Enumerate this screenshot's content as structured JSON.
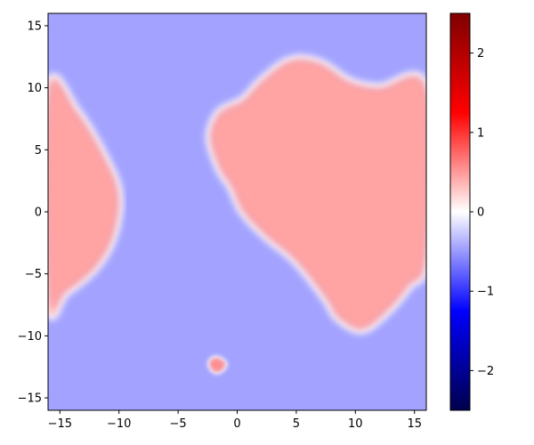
{
  "chart_data": {
    "type": "heatmap",
    "title": "",
    "xlabel": "",
    "ylabel": "",
    "xlim": [
      -16,
      16
    ],
    "ylim": [
      -16,
      16
    ],
    "x_ticks": [
      -15,
      -10,
      -5,
      0,
      5,
      10,
      15
    ],
    "x_tick_labels": [
      "−15",
      "−10",
      "−5",
      "0",
      "5",
      "10",
      "15"
    ],
    "y_ticks": [
      -15,
      -10,
      -5,
      0,
      5,
      10,
      15
    ],
    "y_tick_labels": [
      "−15",
      "−10",
      "−5",
      "0",
      "5",
      "10",
      "15"
    ],
    "grid": false,
    "colormap": "seismic",
    "background_value": -0.45,
    "regions": [
      {
        "name": "",
        "value": 0.45,
        "boundary": [
          [
            -16,
            9.9
          ],
          [
            -13.5,
            8.0
          ],
          [
            -11,
            4.0
          ],
          [
            -10,
            1.2
          ],
          [
            -10.5,
            -2.0
          ],
          [
            -12,
            -4.5
          ],
          [
            -14.5,
            -6.5
          ],
          [
            -16,
            -7.3
          ]
        ]
      },
      {
        "name": "",
        "value": 0.45,
        "boundary": [
          [
            -2.3,
            6.0
          ],
          [
            -1.5,
            8.0
          ],
          [
            0.5,
            9.0
          ],
          [
            2.0,
            10.5
          ],
          [
            4.5,
            12.2
          ],
          [
            7.0,
            12.0
          ],
          [
            9.5,
            10.5
          ],
          [
            12.0,
            10.0
          ],
          [
            16,
            10.0
          ],
          [
            16,
            -3.5
          ],
          [
            14.5,
            -6.0
          ],
          [
            12.5,
            -8.2
          ],
          [
            10.5,
            -9.5
          ],
          [
            8.5,
            -8.5
          ],
          [
            7.5,
            -7.0
          ],
          [
            5.0,
            -4.0
          ],
          [
            2.5,
            -2.0
          ],
          [
            0.5,
            0.0
          ],
          [
            -0.5,
            2.0
          ],
          [
            -1.5,
            3.5
          ]
        ]
      },
      {
        "name": "",
        "value": 0.55,
        "boundary": [
          [
            -1.4,
            -11.9
          ],
          [
            -1.0,
            -12.3
          ],
          [
            -1.4,
            -12.8
          ],
          [
            -1.8,
            -12.9
          ],
          [
            -2.2,
            -12.6
          ],
          [
            -2.3,
            -12.1
          ],
          [
            -1.9,
            -11.8
          ]
        ]
      }
    ],
    "colorbar": {
      "range": [
        -2.5,
        2.5
      ],
      "ticks": [
        -2,
        -1,
        0,
        1,
        2
      ],
      "tick_labels": [
        "−2",
        "−1",
        "0",
        "1",
        "2"
      ]
    }
  }
}
